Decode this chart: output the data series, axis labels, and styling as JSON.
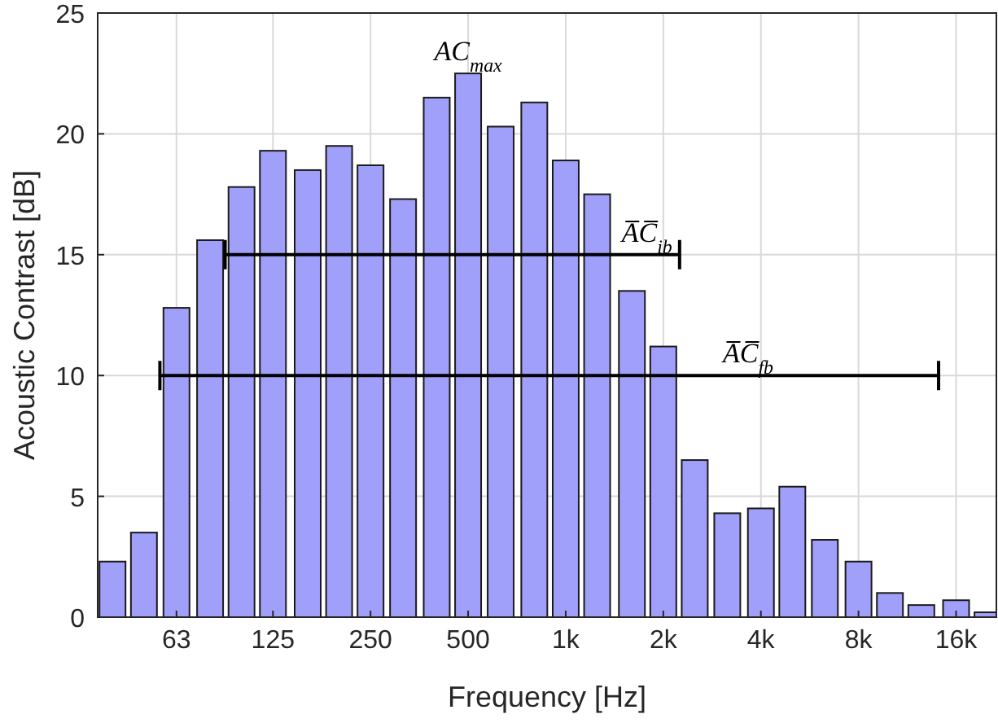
{
  "chart_data": {
    "type": "bar",
    "xlabel": "Frequency [Hz]",
    "ylabel": "Acoustic Contrast [dB]",
    "log": "x",
    "xlim": [
      36,
      21300
    ],
    "ylim": [
      0,
      25
    ],
    "xticks": [
      63,
      125,
      250,
      500,
      {
        "value": 1000,
        "label": "1k"
      },
      {
        "value": 2000,
        "label": "2k"
      },
      {
        "value": 4000,
        "label": "4k"
      },
      {
        "value": 8000,
        "label": "8k"
      },
      {
        "value": 16000,
        "label": "16k"
      }
    ],
    "yticks": [
      0,
      5,
      10,
      15,
      20,
      25
    ],
    "grid": true,
    "series": [
      {
        "color": "#a0a0fa",
        "x": [
          40,
          50,
          63,
          80,
          100,
          125,
          160,
          200,
          250,
          315,
          400,
          500,
          630,
          800,
          1000,
          1250,
          1600,
          2000,
          2500,
          3150,
          4000,
          5000,
          6300,
          8000,
          10000,
          12500,
          16000,
          20000
        ],
        "values": [
          2.3,
          3.5,
          12.8,
          15.6,
          17.8,
          19.3,
          18.5,
          19.5,
          18.7,
          17.3,
          21.5,
          22.5,
          20.3,
          21.3,
          18.9,
          17.5,
          13.5,
          11.2,
          6.5,
          4.3,
          4.5,
          5.4,
          3.2,
          2.3,
          1.0,
          0.5,
          0.7,
          0.2
        ]
      },
      {
        "type": "line",
        "color": "#000000",
        "marker": "none",
        "x": [
          89,
          2245
        ],
        "values": [
          15,
          15
        ]
      },
      {
        "type": "line",
        "color": "#000000",
        "marker": "none",
        "x": [
          56,
          14130
        ],
        "values": [
          10,
          10
        ]
      }
    ],
    "annotations": [
      {
        "text": "AC$_{max}$",
        "x": 500,
        "y": 22.5
      },
      {
        "text": "A̅C̅$_{ib}$",
        "x": 1780,
        "y": 15
      },
      {
        "text": "A̅C̅$_{fb}$",
        "x": 3650,
        "y": 10
      }
    ]
  }
}
